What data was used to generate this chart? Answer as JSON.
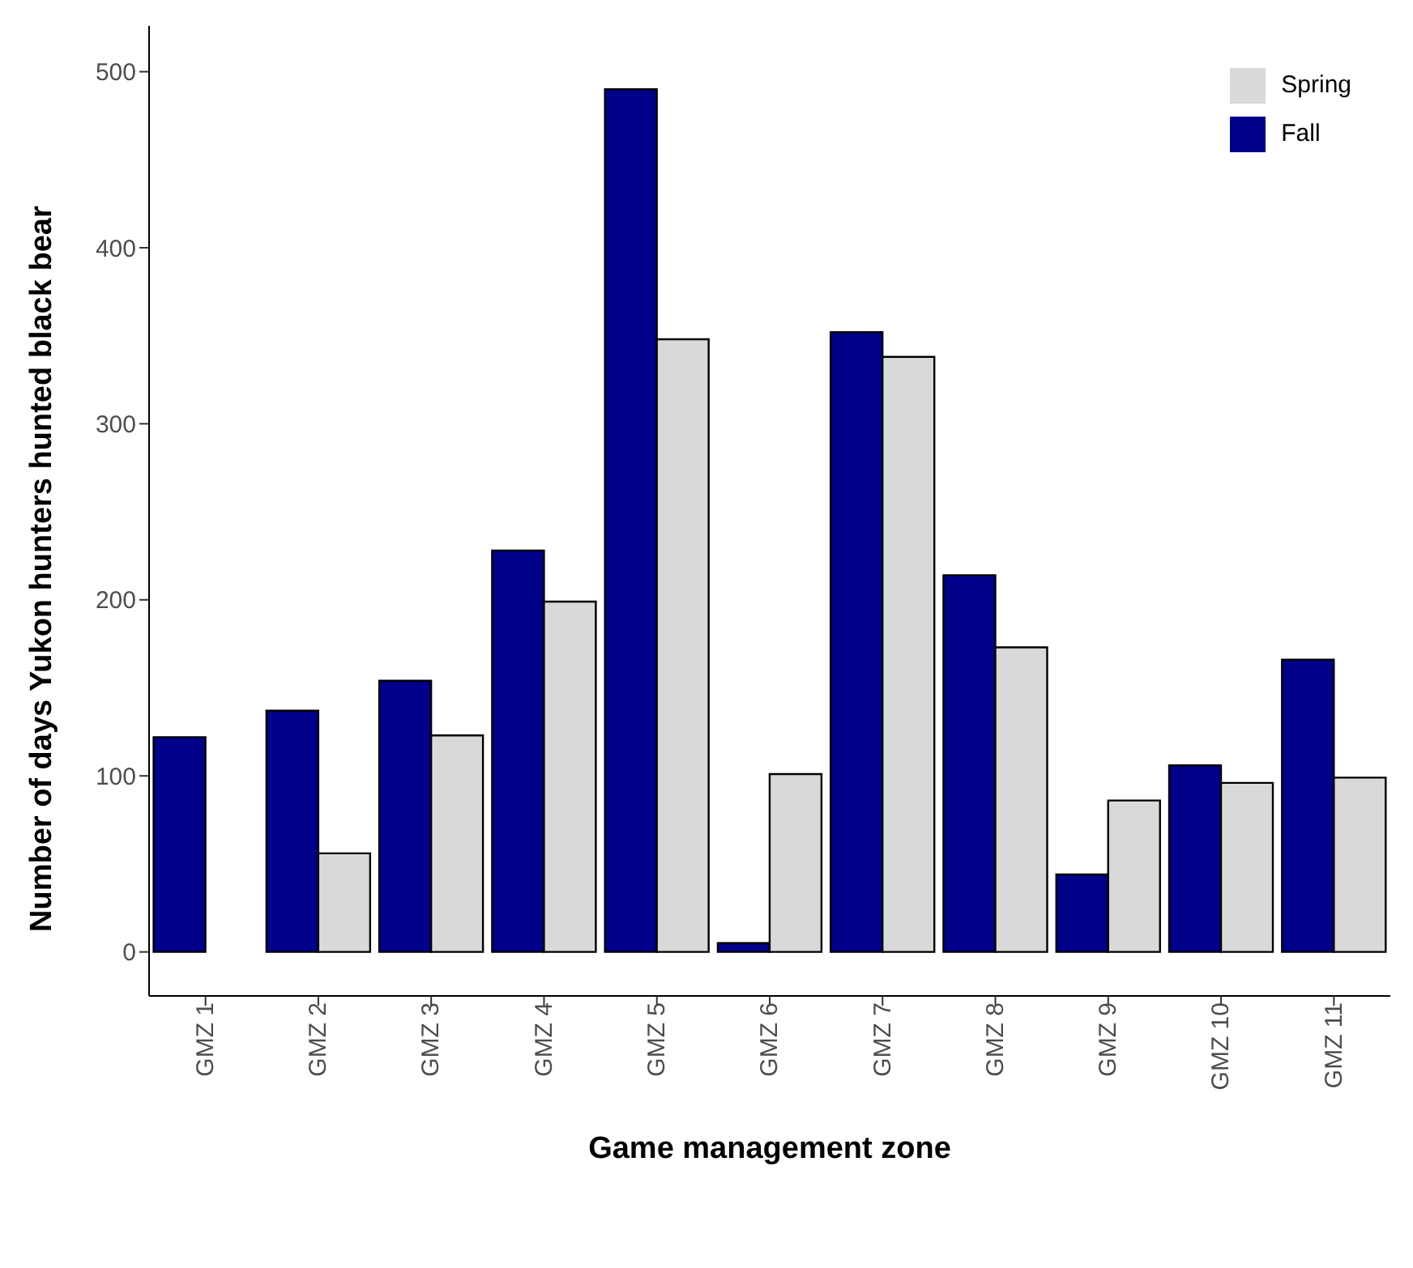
{
  "chart_data": {
    "type": "bar",
    "xlabel": "Game management zone",
    "ylabel": "Number of days Yukon hunters hunted black bear",
    "categories": [
      "GMZ 1",
      "GMZ 2",
      "GMZ 3",
      "GMZ 4",
      "GMZ 5",
      "GMZ 6",
      "GMZ 7",
      "GMZ 8",
      "GMZ 9",
      "GMZ 10",
      "GMZ 11"
    ],
    "series": [
      {
        "name": "Fall",
        "color": "#00008b",
        "values": [
          122,
          137,
          154,
          228,
          490,
          5,
          352,
          214,
          44,
          106,
          166
        ]
      },
      {
        "name": "Spring",
        "color": "#d9d9d9",
        "values": [
          0,
          56,
          123,
          199,
          348,
          101,
          338,
          173,
          86,
          96,
          99
        ]
      }
    ],
    "ylim": [
      -25,
      526
    ],
    "yticks": [
      0,
      100,
      200,
      300,
      400,
      500
    ],
    "grid": false,
    "legend": "top right"
  }
}
